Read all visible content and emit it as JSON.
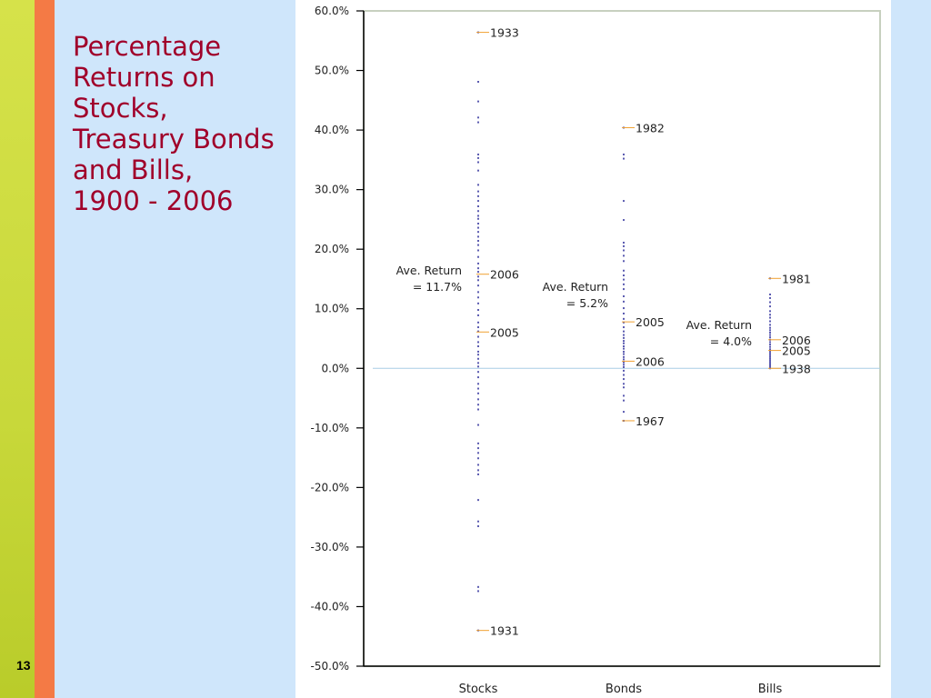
{
  "slide": {
    "title_lines": [
      "Percentage",
      "Returns on",
      "Stocks,",
      "Treasury Bonds",
      "and Bills,",
      "1900 - 2006"
    ],
    "page_number": "13"
  },
  "chart_data": {
    "type": "scatter",
    "ylim": [
      -50,
      60
    ],
    "yticks": [
      "60.0%",
      "50.0%",
      "40.0%",
      "30.0%",
      "20.0%",
      "10.0%",
      "0.0%",
      "-10.0%",
      "-20.0%",
      "-30.0%",
      "-40.0%",
      "-50.0%"
    ],
    "ytick_values": [
      60,
      50,
      40,
      30,
      20,
      10,
      0,
      -10,
      -20,
      -30,
      -40,
      -50
    ],
    "categories": [
      "Stocks",
      "Bonds",
      "Bills"
    ],
    "series": [
      {
        "category": "Stocks",
        "values": [
          56.4,
          48.1,
          44.8,
          42.1,
          41.3,
          35.9,
          35.3,
          34.6,
          33.2,
          30.8,
          29.7,
          28.9,
          28.1,
          27.2,
          26.4,
          25.6,
          25.1,
          24.3,
          23.6,
          22.9,
          22.1,
          21.4,
          20.7,
          19.8,
          18.7,
          17.6,
          16.8,
          16.2,
          15.4,
          14.8,
          13.9,
          12.8,
          11.9,
          10.9,
          9.8,
          8.9,
          7.7,
          6.9,
          6.2,
          5.3,
          4.4,
          3.7,
          2.8,
          2.3,
          1.6,
          0.9,
          0.3,
          -0.6,
          -1.5,
          -2.6,
          -3.4,
          -4.2,
          -5.2,
          -6.1,
          -6.9,
          -9.5,
          -12.6,
          -13.4,
          -14.2,
          -15.1,
          -16.2,
          -17.1,
          -17.8,
          -22.1,
          -25.7,
          -26.5,
          -36.7,
          -37.4,
          -44.0
        ],
        "annotations": [
          {
            "year": "1933",
            "value": 56.4
          },
          {
            "year": "2006",
            "value": 15.8
          },
          {
            "year": "2005",
            "value": 6.1
          },
          {
            "year": "1931",
            "value": -44.0
          }
        ],
        "average_label": [
          "Ave. Return",
          "= 11.7%"
        ]
      },
      {
        "category": "Bonds",
        "values": [
          40.4,
          35.9,
          35.2,
          28.1,
          24.9,
          21.1,
          20.5,
          19.8,
          18.9,
          18.0,
          16.4,
          15.6,
          14.9,
          14.1,
          13.3,
          12.1,
          11.2,
          10.1,
          9.2,
          8.3,
          7.7,
          6.9,
          6.2,
          5.6,
          5.1,
          4.6,
          4.2,
          3.7,
          3.3,
          2.8,
          2.4,
          1.9,
          1.5,
          1.0,
          0.6,
          0.2,
          -0.4,
          -1.1,
          -1.8,
          -2.6,
          -3.2,
          -4.6,
          -5.4,
          -7.3,
          -8.8
        ],
        "annotations": [
          {
            "year": "1982",
            "value": 40.4
          },
          {
            "year": "2005",
            "value": 7.8
          },
          {
            "year": "2006",
            "value": 1.2
          },
          {
            "year": "1967",
            "value": -8.8
          }
        ],
        "average_label": [
          "Ave. Return",
          "= 5.2%"
        ]
      },
      {
        "category": "Bills",
        "values": [
          15.1,
          12.4,
          11.8,
          11.1,
          10.4,
          9.6,
          9.0,
          8.5,
          7.9,
          7.3,
          6.8,
          6.4,
          6.0,
          5.6,
          5.2,
          4.8,
          4.4,
          4.0,
          3.6,
          3.2,
          2.9,
          2.6,
          2.3,
          2.0,
          1.7,
          1.4,
          1.1,
          0.8,
          0.5,
          0.3,
          0.1,
          0.0
        ],
        "annotations": [
          {
            "year": "1981",
            "value": 15.1
          },
          {
            "year": "2006",
            "value": 4.8
          },
          {
            "year": "2005",
            "value": 3.0
          },
          {
            "year": "1938",
            "value": 0.0
          }
        ],
        "average_label": [
          "Ave. Return",
          "= 4.0%"
        ]
      }
    ],
    "colors": {
      "points": "#5b5bb0",
      "annotation_tick": "#f0a030",
      "zero_line": "#a9cde6",
      "axis": "#000000",
      "frame": "#c7d0bf"
    }
  }
}
